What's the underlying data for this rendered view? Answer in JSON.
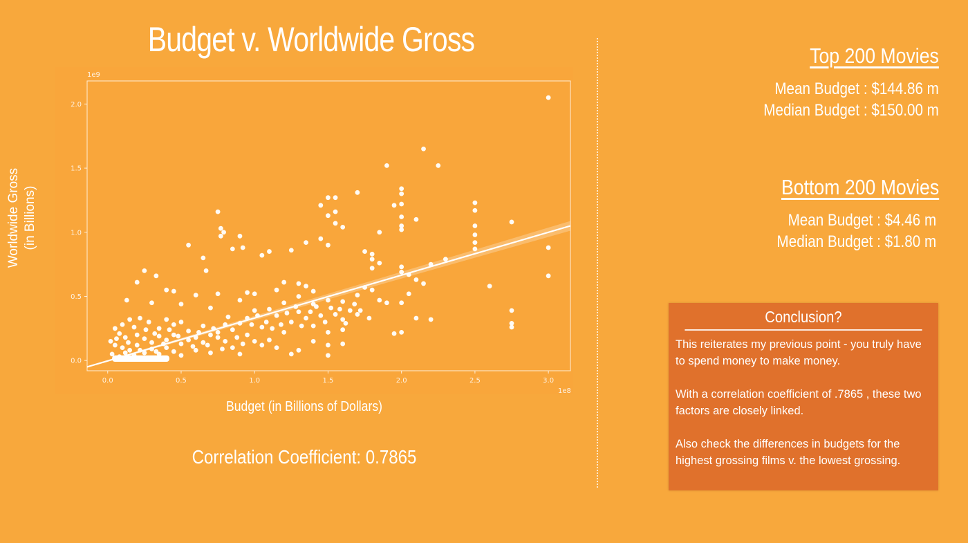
{
  "chart_data": {
    "type": "scatter",
    "title": "Budget v. Worldwide Gross",
    "xlabel": "Budget (in Billions of Dollars)",
    "ylabel_lines": [
      "Worldwide Gross",
      "(in Billions)"
    ],
    "x_offset_label": "1e8",
    "y_offset_label": "1e9",
    "xlim": [
      -0.14,
      3.15
    ],
    "ylim": [
      -0.08,
      2.18
    ],
    "x_ticks": [
      0.0,
      0.5,
      1.0,
      1.5,
      2.0,
      2.5,
      3.0
    ],
    "x_tick_labels": [
      "0.0",
      "0.5",
      "1.0",
      "1.5",
      "2.0",
      "2.5",
      "3.0"
    ],
    "y_ticks": [
      0.0,
      0.5,
      1.0,
      1.5,
      2.0
    ],
    "y_tick_labels": [
      "0.0",
      "0.5",
      "1.0",
      "1.5",
      "2.0"
    ],
    "grid": false,
    "point_color": "#ffffff",
    "trend_line": {
      "x": [
        -0.14,
        3.15
      ],
      "y": [
        -0.05,
        1.05
      ],
      "color": "#ffffff"
    },
    "points": [
      [
        3.0,
        2.05
      ],
      [
        2.15,
        1.65
      ],
      [
        2.25,
        1.52
      ],
      [
        1.9,
        1.52
      ],
      [
        2.0,
        1.34
      ],
      [
        2.0,
        1.3
      ],
      [
        1.7,
        1.31
      ],
      [
        1.55,
        1.27
      ],
      [
        1.5,
        1.27
      ],
      [
        2.5,
        1.23
      ],
      [
        2.5,
        1.17
      ],
      [
        2.0,
        1.22
      ],
      [
        1.95,
        1.21
      ],
      [
        1.45,
        1.21
      ],
      [
        1.55,
        1.16
      ],
      [
        1.5,
        1.13
      ],
      [
        2.1,
        1.1
      ],
      [
        2.0,
        1.12
      ],
      [
        2.0,
        1.05
      ],
      [
        2.0,
        1.02
      ],
      [
        2.75,
        1.08
      ],
      [
        1.55,
        1.07
      ],
      [
        0.75,
        1.16
      ],
      [
        0.77,
        1.03
      ],
      [
        0.79,
        1.0
      ],
      [
        0.77,
        0.97
      ],
      [
        0.9,
        0.97
      ],
      [
        1.6,
        1.04
      ],
      [
        1.85,
        1.0
      ],
      [
        1.45,
        0.95
      ],
      [
        1.5,
        0.9
      ],
      [
        1.35,
        0.92
      ],
      [
        2.5,
        1.05
      ],
      [
        2.5,
        0.98
      ],
      [
        2.5,
        0.92
      ],
      [
        2.5,
        0.87
      ],
      [
        1.75,
        0.85
      ],
      [
        1.8,
        0.83
      ],
      [
        1.8,
        0.79
      ],
      [
        1.85,
        0.76
      ],
      [
        1.8,
        0.72
      ],
      [
        0.55,
        0.9
      ],
      [
        0.85,
        0.87
      ],
      [
        0.92,
        0.88
      ],
      [
        0.65,
        0.8
      ],
      [
        1.05,
        0.82
      ],
      [
        1.1,
        0.85
      ],
      [
        1.25,
        0.86
      ],
      [
        2.0,
        0.73
      ],
      [
        2.05,
        0.67
      ],
      [
        2.2,
        0.75
      ],
      [
        2.3,
        0.79
      ],
      [
        2.0,
        0.69
      ],
      [
        2.1,
        0.63
      ],
      [
        2.15,
        0.6
      ],
      [
        3.0,
        0.88
      ],
      [
        3.0,
        0.66
      ],
      [
        2.6,
        0.58
      ],
      [
        2.75,
        0.39
      ],
      [
        2.75,
        0.29
      ],
      [
        2.75,
        0.26
      ],
      [
        2.2,
        0.32
      ],
      [
        2.1,
        0.33
      ],
      [
        2.0,
        0.22
      ],
      [
        1.95,
        0.21
      ],
      [
        1.6,
        0.24
      ],
      [
        0.25,
        0.7
      ],
      [
        0.33,
        0.66
      ],
      [
        0.4,
        0.55
      ],
      [
        0.2,
        0.61
      ],
      [
        0.45,
        0.54
      ],
      [
        0.6,
        0.51
      ],
      [
        0.75,
        0.52
      ],
      [
        0.67,
        0.7
      ],
      [
        0.13,
        0.47
      ],
      [
        0.3,
        0.45
      ],
      [
        0.5,
        0.44
      ],
      [
        0.7,
        0.41
      ],
      [
        0.9,
        0.47
      ],
      [
        0.95,
        0.53
      ],
      [
        1.0,
        0.52
      ],
      [
        1.15,
        0.55
      ],
      [
        1.2,
        0.61
      ],
      [
        1.3,
        0.6
      ],
      [
        1.35,
        0.58
      ],
      [
        1.4,
        0.54
      ],
      [
        1.3,
        0.5
      ],
      [
        1.2,
        0.45
      ],
      [
        1.4,
        0.44
      ],
      [
        1.5,
        0.47
      ],
      [
        1.6,
        0.46
      ],
      [
        1.7,
        0.51
      ],
      [
        1.75,
        0.57
      ],
      [
        1.8,
        0.55
      ],
      [
        1.85,
        0.47
      ],
      [
        1.9,
        0.45
      ],
      [
        2.0,
        0.45
      ],
      [
        2.05,
        0.52
      ],
      [
        1.65,
        0.39
      ],
      [
        1.7,
        0.36
      ],
      [
        1.6,
        0.32
      ],
      [
        1.55,
        0.36
      ],
      [
        1.45,
        0.35
      ],
      [
        1.35,
        0.33
      ],
      [
        1.25,
        0.3
      ],
      [
        1.3,
        0.38
      ],
      [
        1.15,
        0.35
      ],
      [
        1.1,
        0.4
      ],
      [
        1.0,
        0.39
      ],
      [
        0.95,
        0.33
      ],
      [
        0.9,
        0.29
      ],
      [
        0.85,
        0.24
      ],
      [
        0.8,
        0.28
      ],
      [
        1.05,
        0.26
      ],
      [
        1.5,
        0.22
      ],
      [
        1.4,
        0.27
      ],
      [
        1.2,
        0.22
      ],
      [
        1.1,
        0.16
      ],
      [
        1.3,
        0.08
      ],
      [
        1.5,
        0.04
      ],
      [
        1.5,
        0.12
      ],
      [
        1.25,
        0.05
      ],
      [
        1.0,
        0.15
      ],
      [
        0.9,
        0.05
      ],
      [
        0.85,
        0.1
      ],
      [
        0.75,
        0.18
      ],
      [
        0.7,
        0.06
      ],
      [
        0.6,
        0.08
      ],
      [
        0.65,
        0.27
      ],
      [
        0.55,
        0.23
      ],
      [
        0.5,
        0.3
      ],
      [
        0.45,
        0.28
      ],
      [
        0.4,
        0.32
      ],
      [
        0.35,
        0.25
      ],
      [
        0.28,
        0.3
      ],
      [
        0.22,
        0.33
      ],
      [
        0.15,
        0.32
      ],
      [
        0.18,
        0.26
      ],
      [
        0.1,
        0.28
      ],
      [
        0.05,
        0.25
      ],
      [
        0.08,
        0.21
      ],
      [
        0.12,
        0.18
      ],
      [
        0.2,
        0.2
      ],
      [
        0.25,
        0.17
      ],
      [
        0.3,
        0.14
      ],
      [
        0.35,
        0.19
      ],
      [
        0.4,
        0.16
      ],
      [
        0.45,
        0.2
      ],
      [
        0.5,
        0.13
      ],
      [
        0.55,
        0.16
      ],
      [
        0.6,
        0.18
      ],
      [
        0.65,
        0.14
      ],
      [
        0.7,
        0.2
      ],
      [
        0.75,
        0.22
      ],
      [
        0.8,
        0.15
      ],
      [
        0.95,
        0.2
      ],
      [
        1.05,
        0.12
      ],
      [
        1.15,
        0.1
      ],
      [
        1.4,
        0.15
      ],
      [
        1.6,
        0.13
      ],
      [
        0.05,
        0.12
      ],
      [
        0.1,
        0.1
      ],
      [
        0.15,
        0.08
      ],
      [
        0.2,
        0.12
      ],
      [
        0.25,
        0.06
      ],
      [
        0.3,
        0.09
      ],
      [
        0.35,
        0.05
      ],
      [
        0.4,
        0.1
      ],
      [
        0.45,
        0.07
      ],
      [
        0.5,
        0.04
      ],
      [
        0.03,
        0.05
      ],
      [
        0.08,
        0.03
      ],
      [
        0.12,
        0.06
      ],
      [
        0.18,
        0.04
      ],
      [
        0.22,
        0.08
      ],
      [
        0.28,
        0.02
      ],
      [
        0.33,
        0.07
      ],
      [
        0.02,
        0.15
      ],
      [
        0.06,
        0.17
      ],
      [
        0.14,
        0.14
      ],
      [
        0.26,
        0.24
      ],
      [
        0.32,
        0.21
      ],
      [
        0.38,
        0.13
      ],
      [
        0.42,
        0.24
      ],
      [
        0.48,
        0.19
      ],
      [
        0.58,
        0.11
      ],
      [
        0.62,
        0.22
      ],
      [
        0.68,
        0.12
      ],
      [
        0.72,
        0.25
      ],
      [
        0.78,
        0.09
      ],
      [
        0.82,
        0.34
      ],
      [
        0.88,
        0.18
      ],
      [
        0.92,
        0.13
      ],
      [
        0.98,
        0.28
      ],
      [
        1.02,
        0.35
      ],
      [
        1.08,
        0.3
      ],
      [
        1.12,
        0.25
      ],
      [
        1.18,
        0.28
      ],
      [
        1.22,
        0.37
      ],
      [
        1.28,
        0.42
      ],
      [
        1.32,
        0.27
      ],
      [
        1.38,
        0.38
      ],
      [
        1.42,
        0.42
      ],
      [
        1.48,
        0.3
      ],
      [
        1.52,
        0.41
      ],
      [
        1.58,
        0.4
      ],
      [
        1.62,
        0.29
      ],
      [
        1.68,
        0.44
      ],
      [
        1.72,
        0.39
      ],
      [
        1.78,
        0.33
      ]
    ]
  },
  "stats": {
    "top": {
      "heading": "Top 200 Movies",
      "mean": "Mean Budget  : $144.86 m",
      "median": "Median Budget : $150.00 m"
    },
    "bottom": {
      "heading": "Bottom 200 Movies",
      "mean": "Mean Budget  : $4.46 m",
      "median": "Median Budget : $1.80 m"
    }
  },
  "correlation_text": "Correlation Coefficient: 0.7865",
  "conclusion": {
    "title": "Conclusion?",
    "p1": "This reiterates my previous point - you truly have to spend money to make money.",
    "p2": "With a correlation coefficient of .7865 , these two factors are closely linked.",
    "p3": "Also check the differences in budgets for the highest grossing films v. the lowest grossing."
  },
  "colors": {
    "background": "#f8a83c",
    "conclusion_box": "#e0712c",
    "text": "#ffffff"
  }
}
